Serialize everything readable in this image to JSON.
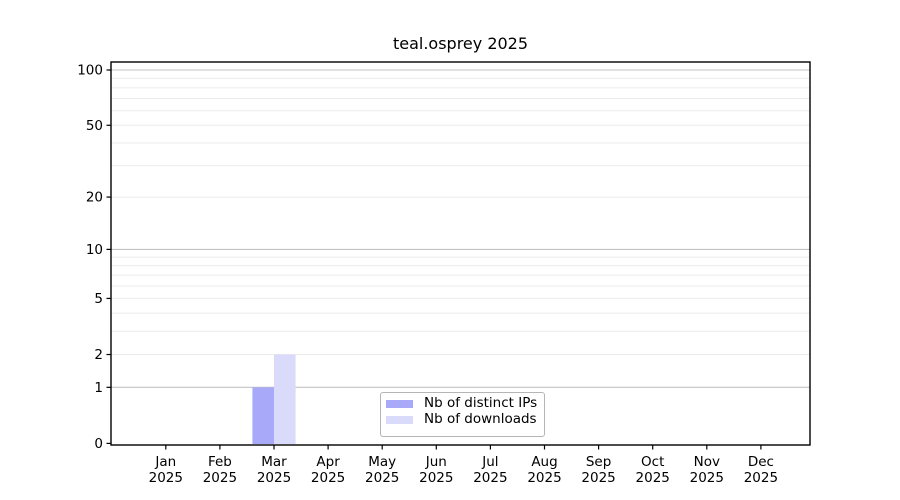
{
  "chart_data": {
    "type": "bar",
    "title": "teal.osprey 2025",
    "categories": [
      "Jan",
      "Feb",
      "Mar",
      "Apr",
      "May",
      "Jun",
      "Jul",
      "Aug",
      "Sep",
      "Oct",
      "Nov",
      "Dec"
    ],
    "category_sublabel": "2025",
    "series": [
      {
        "name": "Nb of distinct IPs",
        "color": "#a9a9fa",
        "values": [
          0,
          0,
          1,
          0,
          0,
          0,
          0,
          0,
          0,
          0,
          0,
          0
        ]
      },
      {
        "name": "Nb of downloads",
        "color": "#dadafb",
        "values": [
          0,
          0,
          2,
          0,
          0,
          0,
          0,
          0,
          0,
          0,
          0,
          0
        ]
      }
    ],
    "xlabel": "",
    "ylabel": "",
    "yscale": "log1p",
    "ylim": [
      0,
      110
    ],
    "yticks": [
      0,
      1,
      2,
      5,
      10,
      20,
      50,
      100
    ],
    "major_gridlines": [
      1,
      10,
      100
    ],
    "minor_gridlines": [
      2,
      3,
      4,
      5,
      6,
      7,
      8,
      9,
      20,
      30,
      40,
      50,
      60,
      70,
      80,
      90
    ],
    "grid": true,
    "legend_position": "inside lower center"
  },
  "style": {
    "background": "#ffffff",
    "text_color": "#000000",
    "spine_color": "#000000",
    "major_grid_color": "#c2c2c2",
    "minor_grid_color": "#ebebeb",
    "legend_border_color": "#b5b5b5",
    "legend_bg_color": "#ffffff"
  }
}
